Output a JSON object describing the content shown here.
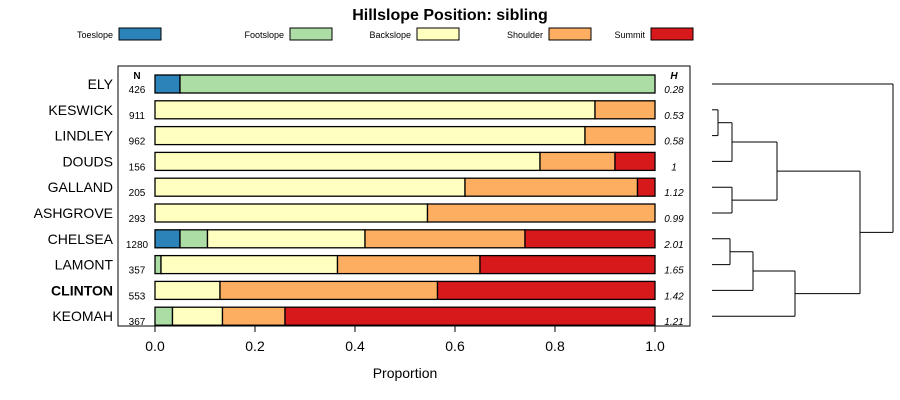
{
  "chart_data": {
    "type": "bar",
    "stacked": true,
    "orientation": "horizontal",
    "title": "Hillslope Position: sibling",
    "xlabel": "Proportion",
    "xlim": [
      0,
      1
    ],
    "xticks": [
      "0.0",
      "0.2",
      "0.4",
      "0.6",
      "0.8",
      "1.0"
    ],
    "legend_position": "top",
    "n_header": "N",
    "h_header": "H",
    "highlighted_category": "CLINTON",
    "series": [
      {
        "name": "Toeslope",
        "color": "#2B83BA"
      },
      {
        "name": "Footslope",
        "color": "#ABDDA4"
      },
      {
        "name": "Backslope",
        "color": "#FFFFBF"
      },
      {
        "name": "Shoulder",
        "color": "#FDAE61"
      },
      {
        "name": "Summit",
        "color": "#D7191C"
      }
    ],
    "categories": [
      "ELY",
      "KESWICK",
      "LINDLEY",
      "DOUDS",
      "GALLAND",
      "ASHGROVE",
      "CHELSEA",
      "LAMONT",
      "CLINTON",
      "KEOMAH"
    ],
    "n": [
      "426",
      "911",
      "962",
      "156",
      "205",
      "293",
      "1280",
      "357",
      "553",
      "367"
    ],
    "h": [
      "0.28",
      "0.53",
      "0.58",
      "1",
      "1.12",
      "0.99",
      "2.01",
      "1.65",
      "1.42",
      "1.21"
    ],
    "values": [
      [
        0.05,
        0.95,
        0.0,
        0.0,
        0.0
      ],
      [
        0.0,
        0.0,
        0.88,
        0.12,
        0.0
      ],
      [
        0.0,
        0.0,
        0.86,
        0.14,
        0.0
      ],
      [
        0.0,
        0.0,
        0.77,
        0.15,
        0.08
      ],
      [
        0.0,
        0.0,
        0.62,
        0.345,
        0.035
      ],
      [
        0.0,
        0.0,
        0.545,
        0.455,
        0.0
      ],
      [
        0.05,
        0.055,
        0.315,
        0.32,
        0.26
      ],
      [
        0.0,
        0.012,
        0.353,
        0.285,
        0.35
      ],
      [
        0.0,
        0.0,
        0.13,
        0.435,
        0.435
      ],
      [
        0.0,
        0.035,
        0.1,
        0.125,
        0.74
      ]
    ],
    "dendrogram": true
  }
}
